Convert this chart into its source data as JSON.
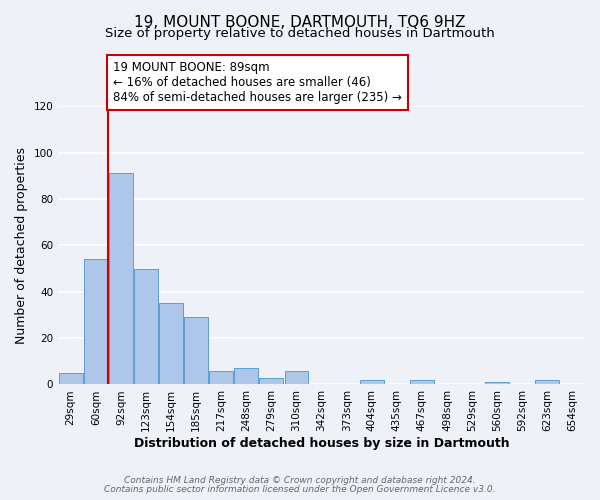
{
  "title": "19, MOUNT BOONE, DARTMOUTH, TQ6 9HZ",
  "subtitle": "Size of property relative to detached houses in Dartmouth",
  "xlabel": "Distribution of detached houses by size in Dartmouth",
  "ylabel": "Number of detached properties",
  "bar_labels": [
    "29sqm",
    "60sqm",
    "92sqm",
    "123sqm",
    "154sqm",
    "185sqm",
    "217sqm",
    "248sqm",
    "279sqm",
    "310sqm",
    "342sqm",
    "373sqm",
    "404sqm",
    "435sqm",
    "467sqm",
    "498sqm",
    "529sqm",
    "560sqm",
    "592sqm",
    "623sqm",
    "654sqm"
  ],
  "bar_values": [
    5,
    54,
    91,
    50,
    35,
    29,
    6,
    7,
    3,
    6,
    0,
    0,
    2,
    0,
    2,
    0,
    0,
    1,
    0,
    2,
    0
  ],
  "bar_color": "#aec6e8",
  "bar_edge_color": "#5a9fd4",
  "highlight_line_index": 2,
  "highlight_line_color": "#cc0000",
  "highlight_box_text": "19 MOUNT BOONE: 89sqm\n← 16% of detached houses are smaller (46)\n84% of semi-detached houses are larger (235) →",
  "ylim": [
    0,
    120
  ],
  "yticks": [
    0,
    20,
    40,
    60,
    80,
    100,
    120
  ],
  "footer_line1": "Contains HM Land Registry data © Crown copyright and database right 2024.",
  "footer_line2": "Contains public sector information licensed under the Open Government Licence v3.0.",
  "background_color": "#eef2f8",
  "plot_bg_color": "#eef2f8",
  "grid_color": "#ffffff",
  "title_fontsize": 11,
  "subtitle_fontsize": 9.5,
  "axis_label_fontsize": 9,
  "tick_fontsize": 7.5,
  "annotation_fontsize": 8.5,
  "footer_fontsize": 6.5
}
